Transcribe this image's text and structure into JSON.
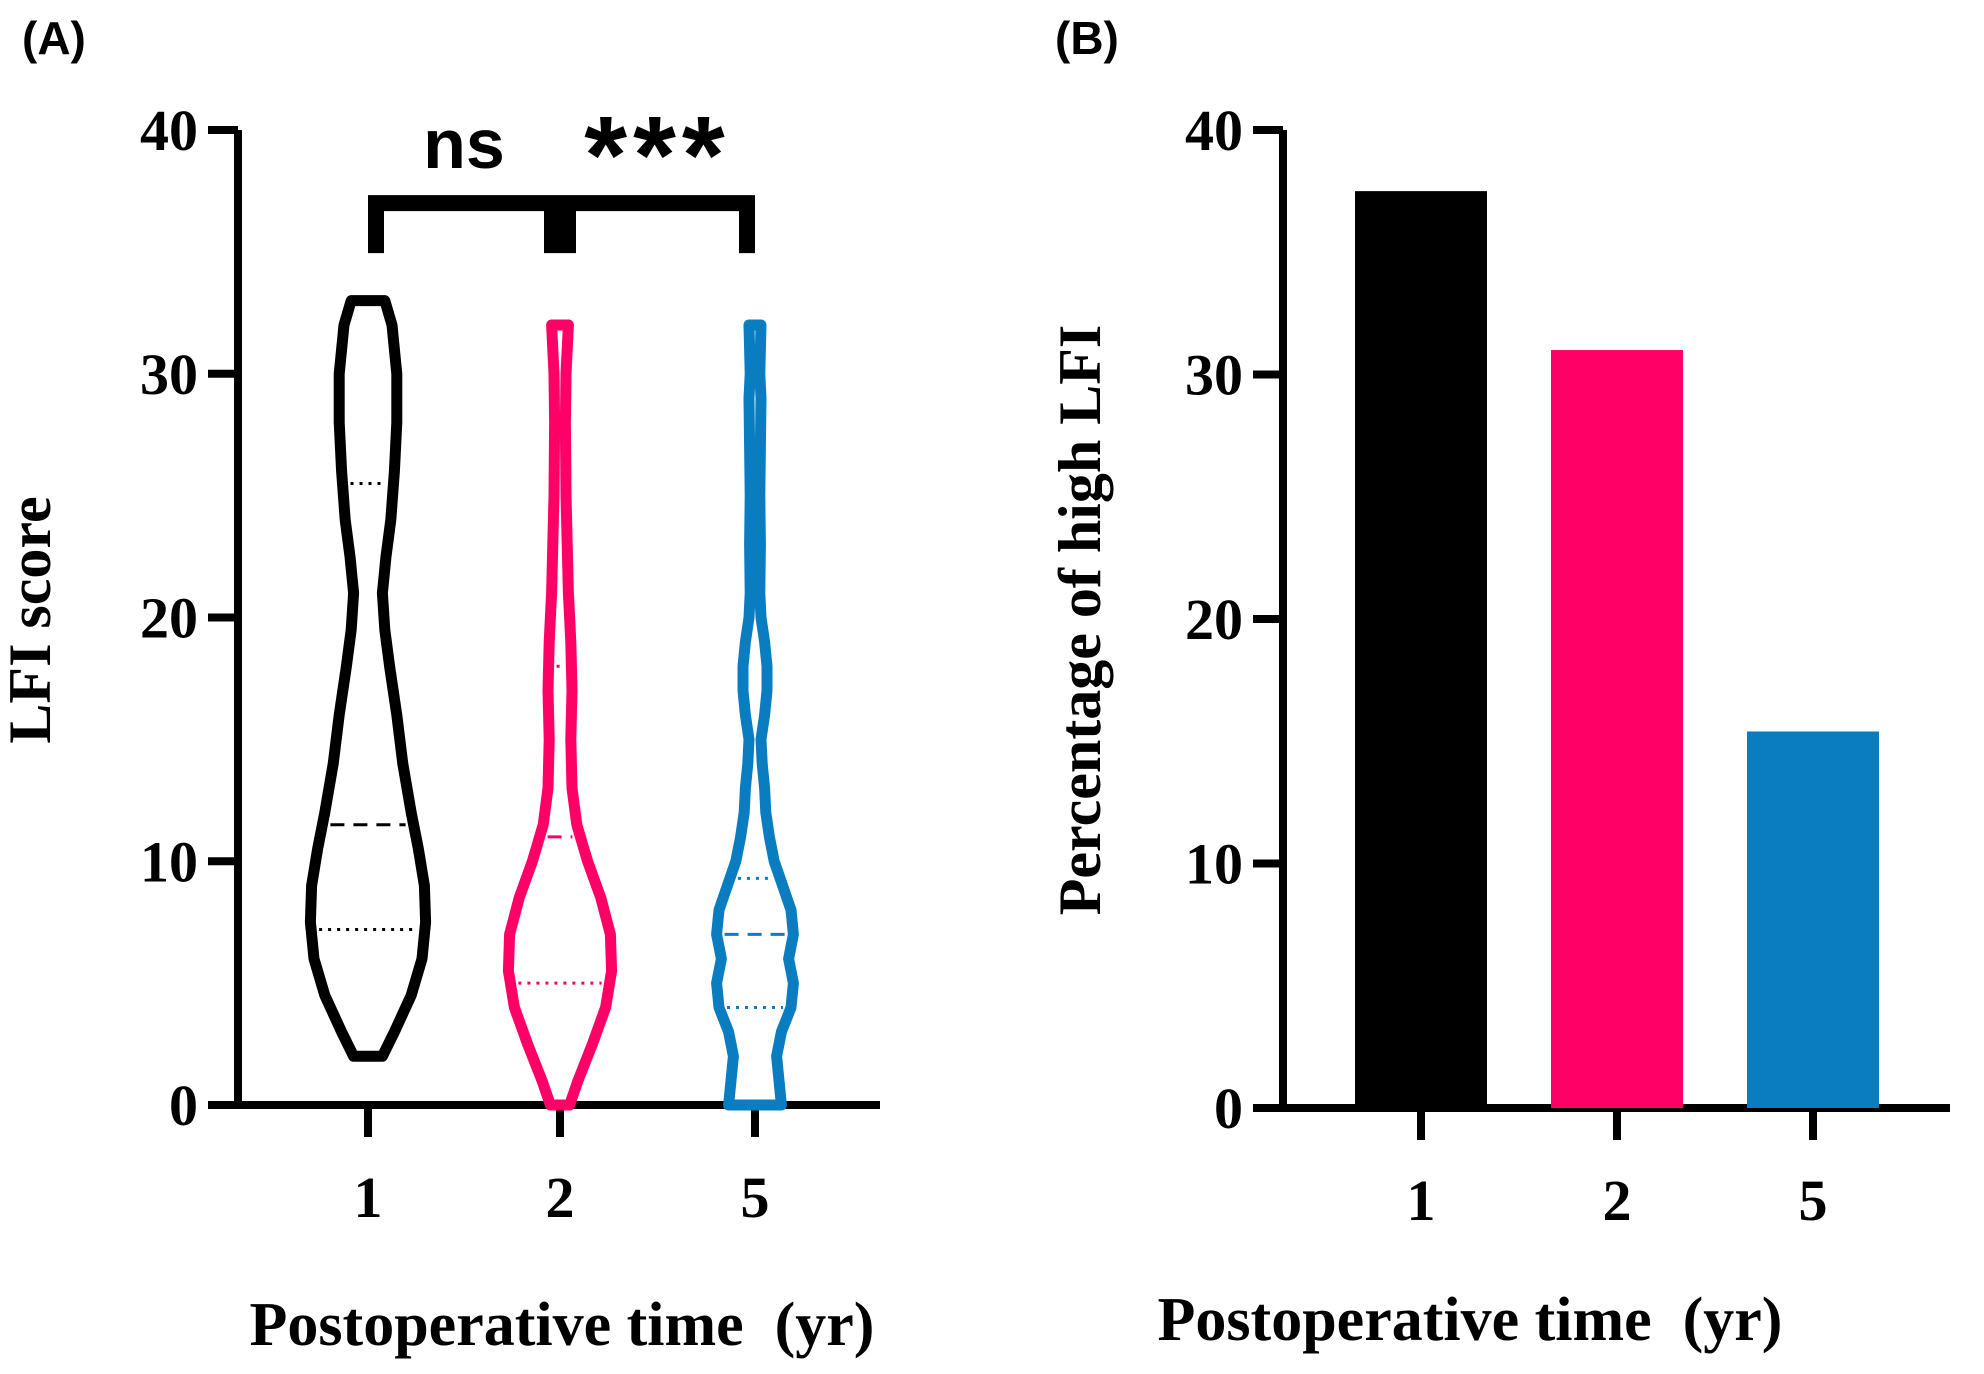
{
  "chart_data": [
    {
      "panel_label": "(A)",
      "type": "violin",
      "ylabel": "LFI score",
      "xlabel": "Postoperative time  (yr)",
      "ylim": [
        0,
        40
      ],
      "yticks": [
        "0",
        "10",
        "20",
        "30",
        "40"
      ],
      "categories": [
        "1",
        "2",
        "5"
      ],
      "colors": [
        "#000000",
        "#FF0066",
        "#0A7DC0"
      ],
      "series": [
        {
          "category": "1",
          "min": 2,
          "max": 33,
          "q1": 7.2,
          "median": 11.5,
          "q3": 25.5,
          "profile": [
            [
              2,
              0.12
            ],
            [
              3,
              0.22
            ],
            [
              4.5,
              0.36
            ],
            [
              6,
              0.45
            ],
            [
              7.5,
              0.48
            ],
            [
              9,
              0.47
            ],
            [
              10.5,
              0.42
            ],
            [
              12,
              0.36
            ],
            [
              14,
              0.29
            ],
            [
              16,
              0.24
            ],
            [
              18,
              0.18
            ],
            [
              19.5,
              0.14
            ],
            [
              21,
              0.12
            ],
            [
              22.5,
              0.15
            ],
            [
              24,
              0.19
            ],
            [
              26,
              0.22
            ],
            [
              28,
              0.24
            ],
            [
              30,
              0.24
            ],
            [
              32,
              0.2
            ],
            [
              33,
              0.14
            ]
          ]
        },
        {
          "category": "2",
          "min": 0,
          "max": 32,
          "q1": 5,
          "median": 11,
          "q3": 18,
          "profile": [
            [
              0,
              0.08
            ],
            [
              1,
              0.15
            ],
            [
              2.5,
              0.27
            ],
            [
              4,
              0.38
            ],
            [
              5.5,
              0.43
            ],
            [
              7,
              0.42
            ],
            [
              8.5,
              0.34
            ],
            [
              10,
              0.23
            ],
            [
              11.5,
              0.14
            ],
            [
              13,
              0.1
            ],
            [
              15,
              0.09
            ],
            [
              17,
              0.1
            ],
            [
              19,
              0.09
            ],
            [
              21,
              0.07
            ],
            [
              23,
              0.06
            ],
            [
              25,
              0.05
            ],
            [
              28,
              0.045
            ],
            [
              30,
              0.05
            ],
            [
              32,
              0.07
            ]
          ]
        },
        {
          "category": "5",
          "min": 0,
          "max": 32,
          "q1": 4,
          "median": 7,
          "q3": 9.3,
          "profile": [
            [
              0,
              0.22
            ],
            [
              1,
              0.2
            ],
            [
              2,
              0.18
            ],
            [
              3,
              0.22
            ],
            [
              4,
              0.3
            ],
            [
              5,
              0.32
            ],
            [
              6,
              0.28
            ],
            [
              7,
              0.32
            ],
            [
              8,
              0.3
            ],
            [
              9,
              0.23
            ],
            [
              10,
              0.16
            ],
            [
              11,
              0.12
            ],
            [
              12,
              0.09
            ],
            [
              13,
              0.08
            ],
            [
              14,
              0.06
            ],
            [
              15,
              0.05
            ],
            [
              16,
              0.08
            ],
            [
              17,
              0.1
            ],
            [
              18,
              0.1
            ],
            [
              19,
              0.08
            ],
            [
              20,
              0.05
            ],
            [
              21,
              0.04
            ],
            [
              23,
              0.045
            ],
            [
              25,
              0.04
            ],
            [
              27,
              0.045
            ],
            [
              29,
              0.05
            ],
            [
              30,
              0.04
            ],
            [
              32,
              0.05
            ]
          ]
        }
      ],
      "annotations": [
        {
          "text": "ns",
          "from": "1",
          "to": "2",
          "level": 37
        },
        {
          "text": "***",
          "from": "2",
          "to": "5",
          "level": 37
        }
      ]
    },
    {
      "panel_label": "(B)",
      "type": "bar",
      "ylabel": "Percentage of high LFI",
      "xlabel": "Postoperative time  (yr)",
      "ylim": [
        0,
        40
      ],
      "yticks": [
        "0",
        "10",
        "20",
        "30",
        "40"
      ],
      "categories": [
        "1",
        "2",
        "5"
      ],
      "values": [
        37.5,
        31,
        15.4
      ],
      "colors": [
        "#000000",
        "#FF0066",
        "#0A7DC0"
      ]
    }
  ]
}
